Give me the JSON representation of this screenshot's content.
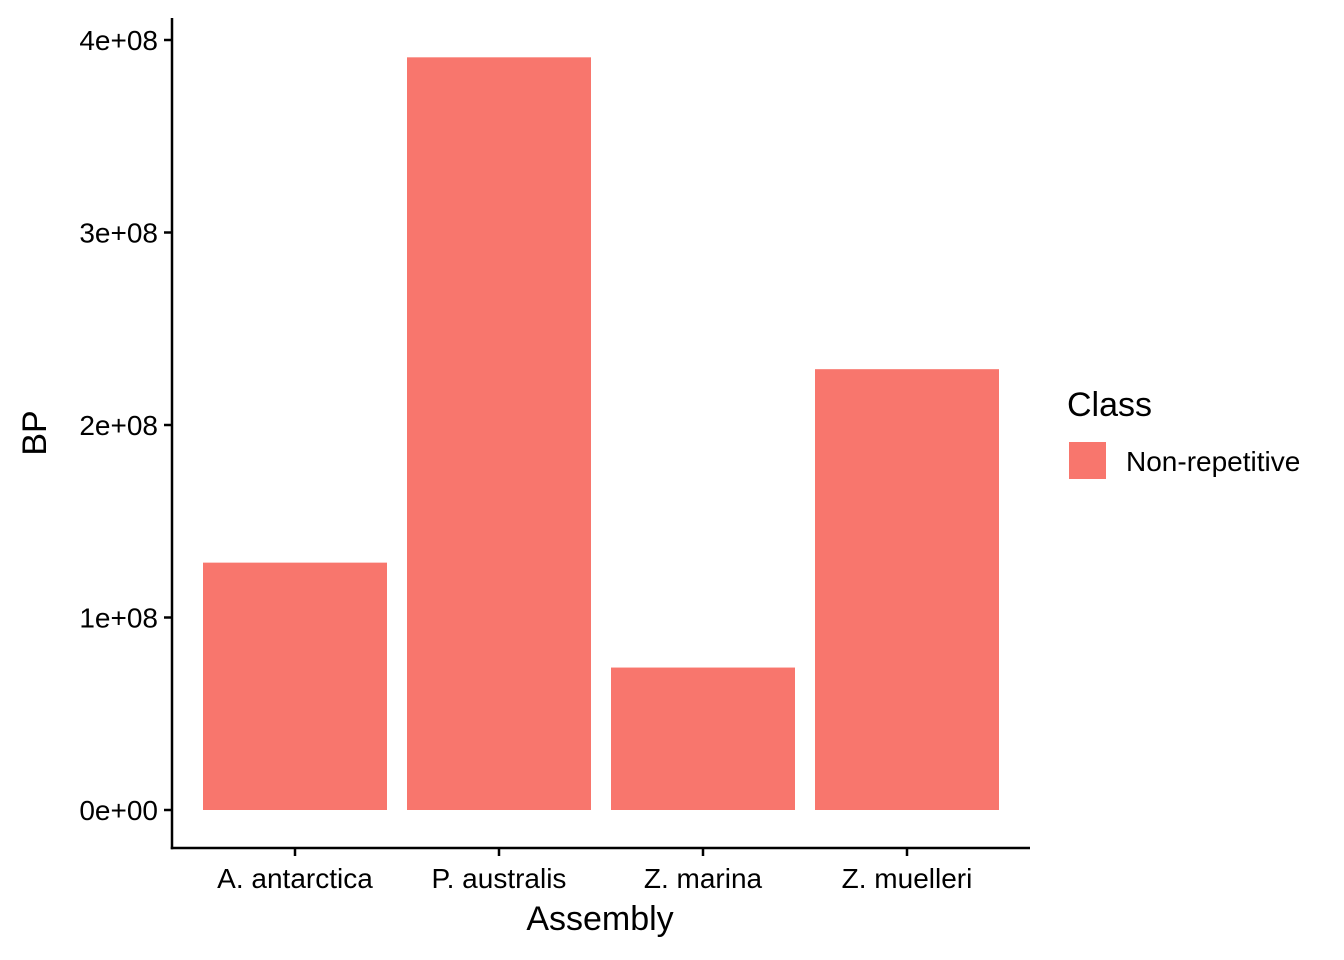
{
  "chart_data": {
    "type": "bar",
    "title": "",
    "xlabel": "Assembly",
    "ylabel": "BP",
    "categories": [
      "A. antarctica",
      "P. australis",
      "Z. marina",
      "Z. muelleri"
    ],
    "series": [
      {
        "name": "Non-repetitive",
        "color": "#F8766D",
        "values": [
          128500000,
          391000000,
          74000000,
          229000000
        ]
      }
    ],
    "ylim": [
      0,
      400000000
    ],
    "yticks": [
      0,
      100000000,
      200000000,
      300000000,
      400000000
    ],
    "ytick_labels": [
      "0e+00",
      "1e+08",
      "2e+08",
      "3e+08",
      "4e+08"
    ],
    "grid": false,
    "legend": {
      "title": "Class",
      "placement": "right",
      "entries": [
        "Non-repetitive"
      ]
    }
  }
}
